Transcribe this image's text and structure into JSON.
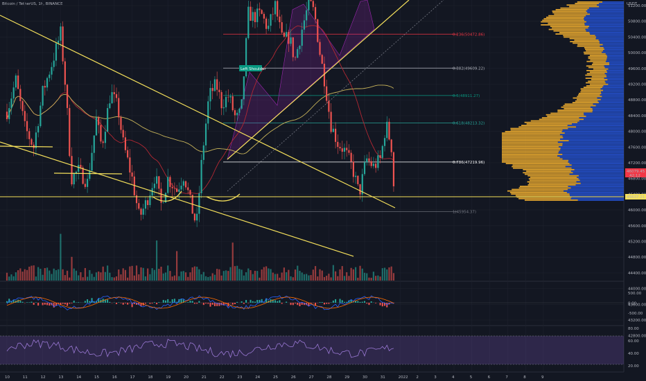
{
  "header": {
    "symbol_title": "Bitcoin / TetherUS, 1h, BINANCE"
  },
  "price_axis": {
    "currency": "USDT",
    "labels": [
      "51200.00",
      "50800.00",
      "50400.00",
      "50000.00",
      "49600.00",
      "49200.00",
      "48800.00",
      "48400.00",
      "48000.00",
      "47600.00",
      "47200.00",
      "46800.00",
      "46400.00",
      "46000.00",
      "45600.00",
      "45200.00",
      "44800.00",
      "44400.00",
      "44000.00",
      "43600.00",
      "43200.00",
      "42800.00"
    ],
    "current_price": "46079.45",
    "current_sub": "42:12",
    "support_price": "45637.21"
  },
  "macd_axis": {
    "labels": [
      "500.00",
      "0.00",
      "-500.00"
    ]
  },
  "rsi_axis": {
    "labels": [
      "80.00",
      "60.00",
      "40.00",
      "20.00"
    ]
  },
  "time_axis": {
    "labels": [
      "10",
      "11",
      "12",
      "13",
      "14",
      "15",
      "16",
      "17",
      "18",
      "19",
      "20",
      "21",
      "22",
      "23",
      "24",
      "25",
      "26",
      "27",
      "28",
      "29",
      "30",
      "31",
      "2022",
      "2",
      "3",
      "4",
      "5",
      "6",
      "7",
      "8",
      "9"
    ]
  },
  "annotations": {
    "pattern_label": "Left Shoulder"
  },
  "fib_levels": [
    {
      "label": "0.236(50472.86)",
      "price": 50472.86,
      "color": "#f23645"
    },
    {
      "label": "0.382(49609.22)",
      "price": 49609.22,
      "color": "#b2b5be"
    },
    {
      "label": "0.5(48911.27)",
      "price": 48911.27,
      "color": "#089981"
    },
    {
      "label": "0.618(48213.32)",
      "price": 48213.32,
      "color": "#26a69a"
    },
    {
      "label": "0.786(47219.96)",
      "price": 47219.96,
      "color": "#ffffff"
    },
    {
      "label": "1(45954.37)",
      "price": 45954.37,
      "color": "#787b86"
    }
  ],
  "colors": {
    "background": "#131722",
    "up": "#26a69a",
    "down": "#ef5350",
    "trendline": "#f5e05b",
    "volume_profile_up": "#2962ff",
    "volume_profile_down": "#e0a32e",
    "rsi": "#9a78d4"
  },
  "chart_data": {
    "type": "candlestick",
    "title": "Bitcoin / TetherUS, 1h, BINANCE",
    "y_unit": "USDT",
    "ylim": [
      42700,
      51350
    ],
    "x_range": [
      "Dec 10",
      "Jan 9"
    ],
    "price_path": [
      {
        "day": 10.0,
        "price": 48500
      },
      {
        "day": 10.5,
        "price": 49300
      },
      {
        "day": 11.0,
        "price": 48100
      },
      {
        "day": 11.5,
        "price": 47600
      },
      {
        "day": 12.0,
        "price": 49000
      },
      {
        "day": 12.5,
        "price": 49700
      },
      {
        "day": 13.0,
        "price": 50500
      },
      {
        "day": 13.3,
        "price": 49000
      },
      {
        "day": 13.6,
        "price": 46800
      },
      {
        "day": 14.0,
        "price": 47000
      },
      {
        "day": 14.5,
        "price": 46700
      },
      {
        "day": 15.0,
        "price": 48300
      },
      {
        "day": 15.3,
        "price": 47600
      },
      {
        "day": 15.8,
        "price": 49000
      },
      {
        "day": 16.2,
        "price": 48600
      },
      {
        "day": 16.5,
        "price": 47700
      },
      {
        "day": 17.0,
        "price": 46800
      },
      {
        "day": 17.4,
        "price": 45800
      },
      {
        "day": 17.8,
        "price": 46200
      },
      {
        "day": 18.3,
        "price": 46900
      },
      {
        "day": 18.6,
        "price": 46100
      },
      {
        "day": 19.0,
        "price": 46800
      },
      {
        "day": 19.5,
        "price": 46500
      },
      {
        "day": 19.9,
        "price": 46900
      },
      {
        "day": 20.3,
        "price": 46100
      },
      {
        "day": 20.6,
        "price": 45600
      },
      {
        "day": 20.9,
        "price": 47300
      },
      {
        "day": 21.3,
        "price": 48900
      },
      {
        "day": 21.7,
        "price": 49200
      },
      {
        "day": 22.0,
        "price": 48700
      },
      {
        "day": 22.4,
        "price": 48900
      },
      {
        "day": 22.8,
        "price": 48300
      },
      {
        "day": 23.1,
        "price": 48500
      },
      {
        "day": 23.5,
        "price": 51000
      },
      {
        "day": 23.8,
        "price": 50900
      },
      {
        "day": 24.2,
        "price": 51000
      },
      {
        "day": 24.6,
        "price": 50600
      },
      {
        "day": 25.0,
        "price": 51200
      },
      {
        "day": 25.4,
        "price": 50300
      },
      {
        "day": 25.8,
        "price": 50400
      },
      {
        "day": 26.1,
        "price": 49800
      },
      {
        "day": 26.5,
        "price": 50600
      },
      {
        "day": 26.9,
        "price": 51300
      },
      {
        "day": 27.2,
        "price": 51000
      },
      {
        "day": 27.5,
        "price": 50000
      },
      {
        "day": 27.8,
        "price": 49200
      },
      {
        "day": 28.1,
        "price": 48200
      },
      {
        "day": 28.5,
        "price": 47700
      },
      {
        "day": 28.9,
        "price": 47500
      },
      {
        "day": 29.3,
        "price": 47100
      },
      {
        "day": 29.7,
        "price": 46400
      },
      {
        "day": 30.1,
        "price": 47300
      },
      {
        "day": 30.5,
        "price": 47100
      },
      {
        "day": 30.9,
        "price": 47300
      },
      {
        "day": 31.2,
        "price": 48200
      },
      {
        "day": 31.5,
        "price": 47600
      },
      {
        "day": 31.7,
        "price": 46079
      }
    ]
  }
}
